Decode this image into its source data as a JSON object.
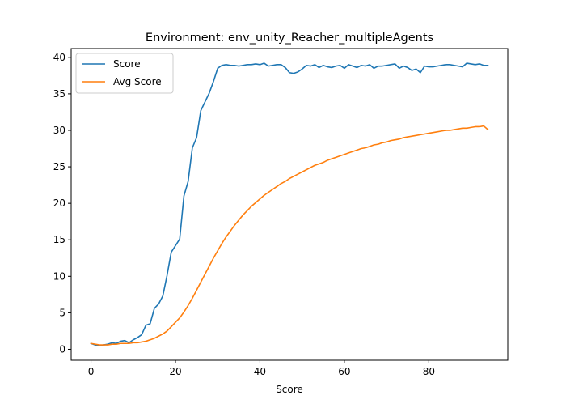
{
  "chart_data": {
    "type": "line",
    "title": "Environment: env_unity_Reacher_multipleAgents",
    "xlabel": "Score",
    "ylabel": "",
    "xlim": [
      -4.7,
      98.7
    ],
    "ylim": [
      -1.5,
      41.2
    ],
    "xticks": [
      0,
      20,
      40,
      60,
      80
    ],
    "yticks": [
      0,
      5,
      10,
      15,
      20,
      25,
      30,
      35,
      40
    ],
    "grid": false,
    "legend_position": "top-left",
    "series": [
      {
        "name": "Score",
        "color": "#1f77b4",
        "x": [
          0,
          1,
          2,
          3,
          4,
          5,
          6,
          7,
          8,
          9,
          10,
          11,
          12,
          13,
          14,
          15,
          16,
          17,
          18,
          19,
          20,
          21,
          22,
          23,
          24,
          25,
          26,
          27,
          28,
          29,
          30,
          31,
          32,
          33,
          34,
          35,
          36,
          37,
          38,
          39,
          40,
          41,
          42,
          43,
          44,
          45,
          46,
          47,
          48,
          49,
          50,
          51,
          52,
          53,
          54,
          55,
          56,
          57,
          58,
          59,
          60,
          61,
          62,
          63,
          64,
          65,
          66,
          67,
          68,
          69,
          70,
          71,
          72,
          73,
          74,
          75,
          76,
          77,
          78,
          79,
          80,
          81,
          82,
          83,
          84,
          85,
          86,
          87,
          88,
          89,
          90,
          91,
          92,
          93,
          94
        ],
        "y": [
          0.8,
          0.6,
          0.5,
          0.6,
          0.7,
          0.9,
          0.8,
          1.1,
          1.2,
          0.9,
          1.3,
          1.6,
          2.0,
          3.3,
          3.5,
          5.6,
          6.2,
          7.3,
          10.1,
          13.3,
          14.2,
          15.1,
          21.0,
          23.0,
          27.6,
          29.0,
          32.7,
          33.9,
          35.1,
          36.7,
          38.5,
          38.9,
          39.0,
          38.9,
          38.9,
          38.8,
          38.9,
          39.0,
          39.0,
          39.1,
          39.0,
          39.2,
          38.8,
          38.9,
          39.0,
          39.0,
          38.6,
          37.9,
          37.8,
          38.0,
          38.4,
          38.9,
          38.8,
          39.0,
          38.6,
          38.9,
          38.7,
          38.6,
          38.8,
          38.9,
          38.5,
          39.0,
          38.8,
          38.6,
          38.9,
          38.8,
          39.0,
          38.5,
          38.8,
          38.8,
          38.9,
          39.0,
          39.1,
          38.5,
          38.8,
          38.6,
          38.2,
          38.4,
          37.9,
          38.8,
          38.7,
          38.7,
          38.8,
          38.9,
          39.0,
          39.0,
          38.9,
          38.8,
          38.7,
          39.2,
          39.1,
          39.0,
          39.1,
          38.9,
          38.9
        ]
      },
      {
        "name": "Avg Score",
        "color": "#ff7f0e",
        "x": [
          0,
          1,
          2,
          3,
          4,
          5,
          6,
          7,
          8,
          9,
          10,
          11,
          12,
          13,
          14,
          15,
          16,
          17,
          18,
          19,
          20,
          21,
          22,
          23,
          24,
          25,
          26,
          27,
          28,
          29,
          30,
          31,
          32,
          33,
          34,
          35,
          36,
          37,
          38,
          39,
          40,
          41,
          42,
          43,
          44,
          45,
          46,
          47,
          48,
          49,
          50,
          51,
          52,
          53,
          54,
          55,
          56,
          57,
          58,
          59,
          60,
          61,
          62,
          63,
          64,
          65,
          66,
          67,
          68,
          69,
          70,
          71,
          72,
          73,
          74,
          75,
          76,
          77,
          78,
          79,
          80,
          81,
          82,
          83,
          84,
          85,
          86,
          87,
          88,
          89,
          90,
          91,
          92,
          93,
          94
        ],
        "y": [
          0.8,
          0.7,
          0.6,
          0.6,
          0.6,
          0.7,
          0.7,
          0.8,
          0.8,
          0.8,
          0.9,
          0.9,
          1.0,
          1.1,
          1.3,
          1.5,
          1.8,
          2.1,
          2.5,
          3.1,
          3.7,
          4.3,
          5.1,
          6.0,
          7.0,
          8.1,
          9.2,
          10.3,
          11.4,
          12.5,
          13.5,
          14.5,
          15.4,
          16.2,
          17.0,
          17.7,
          18.4,
          19.0,
          19.6,
          20.1,
          20.6,
          21.1,
          21.5,
          21.9,
          22.3,
          22.7,
          23.0,
          23.4,
          23.7,
          24.0,
          24.3,
          24.6,
          24.9,
          25.2,
          25.4,
          25.6,
          25.9,
          26.1,
          26.3,
          26.5,
          26.7,
          26.9,
          27.1,
          27.3,
          27.5,
          27.6,
          27.8,
          28.0,
          28.1,
          28.3,
          28.4,
          28.6,
          28.7,
          28.8,
          29.0,
          29.1,
          29.2,
          29.3,
          29.4,
          29.5,
          29.6,
          29.7,
          29.8,
          29.9,
          30.0,
          30.0,
          30.1,
          30.2,
          30.3,
          30.3,
          30.4,
          30.5,
          30.5,
          30.6,
          30.1
        ]
      }
    ]
  }
}
